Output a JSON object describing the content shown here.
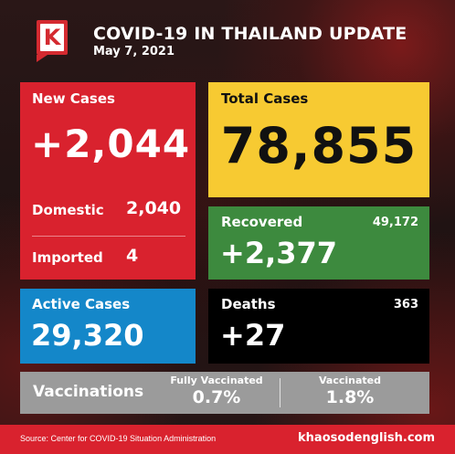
{
  "header": {
    "logo_letter": "K",
    "title": "COVID-19 IN THAILAND UPDATE",
    "date": "May 7, 2021"
  },
  "new_cases": {
    "label": "New Cases",
    "value": "+2,044",
    "domestic_label": "Domestic",
    "domestic_value": "2,040",
    "imported_label": "Imported",
    "imported_value": "4"
  },
  "total_cases": {
    "label": "Total Cases",
    "value": "78,855"
  },
  "recovered": {
    "label": "Recovered",
    "total": "49,172",
    "value": "+2,377"
  },
  "active_cases": {
    "label": "Active Cases",
    "value": "29,320"
  },
  "deaths": {
    "label": "Deaths",
    "total": "363",
    "value": "+27"
  },
  "vaccinations": {
    "label": "Vaccinations",
    "fully_label": "Fully Vaccinated",
    "fully_value": "0.7%",
    "vacc_label": "Vaccinated",
    "vacc_value": "1.8%"
  },
  "footer": {
    "source": "Source: Center for COVID-19 Situation Administration",
    "site": "khaosodenglish.com"
  },
  "colors": {
    "red": "#d9222e",
    "yellow": "#f7ca32",
    "green": "#3d8a3e",
    "blue": "#1487c9",
    "black": "#000000",
    "gray": "#9b9b9b"
  }
}
